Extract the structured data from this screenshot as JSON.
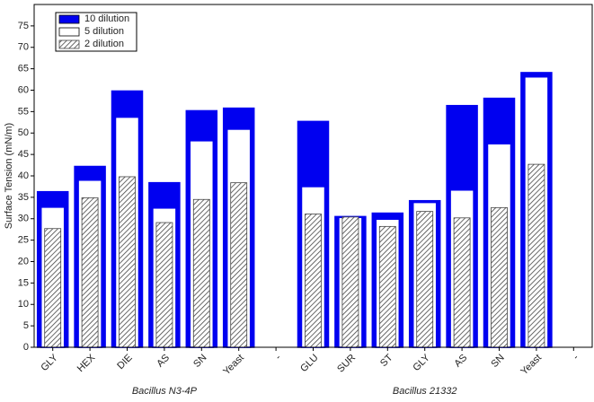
{
  "chart_data": {
    "type": "overlap-bar",
    "y_label": "Surface Tension (mN/m)",
    "categories": [
      "GLY",
      "HEX",
      "DIE",
      "AS",
      "SN",
      "Yeast",
      "-",
      "GLU",
      "SUR",
      "ST",
      "GLY",
      "AS",
      "SN",
      "Yeast",
      "-"
    ],
    "group_labels": [
      "Bacillus N3-4P",
      "Bacillus 21332"
    ],
    "series": [
      {
        "name": "10 dilution",
        "color": "#0000f0",
        "values": [
          36.3,
          42.2,
          59.8,
          38.4,
          55.2,
          55.8,
          null,
          52.7,
          30.5,
          31.3,
          34.2,
          56.4,
          58.1,
          64.1,
          null
        ]
      },
      {
        "name": "5 dilution",
        "color": "#ffffff",
        "values": [
          32.7,
          39.0,
          53.7,
          32.5,
          48.2,
          50.9,
          null,
          37.5,
          30.3,
          29.9,
          33.8,
          36.7,
          47.5,
          63.1,
          null
        ]
      },
      {
        "name": "2 dilution",
        "color": "#444444",
        "pattern": "hatch",
        "values": [
          27.7,
          34.9,
          39.8,
          29.1,
          34.5,
          38.4,
          null,
          31.1,
          30.4,
          28.2,
          31.7,
          30.2,
          32.6,
          42.7,
          null
        ]
      }
    ],
    "ylim": [
      0,
      80
    ],
    "yticks": [
      0,
      5,
      10,
      15,
      20,
      25,
      30,
      35,
      40,
      45,
      50,
      55,
      60,
      65,
      70,
      75
    ],
    "legend": "top-left"
  }
}
